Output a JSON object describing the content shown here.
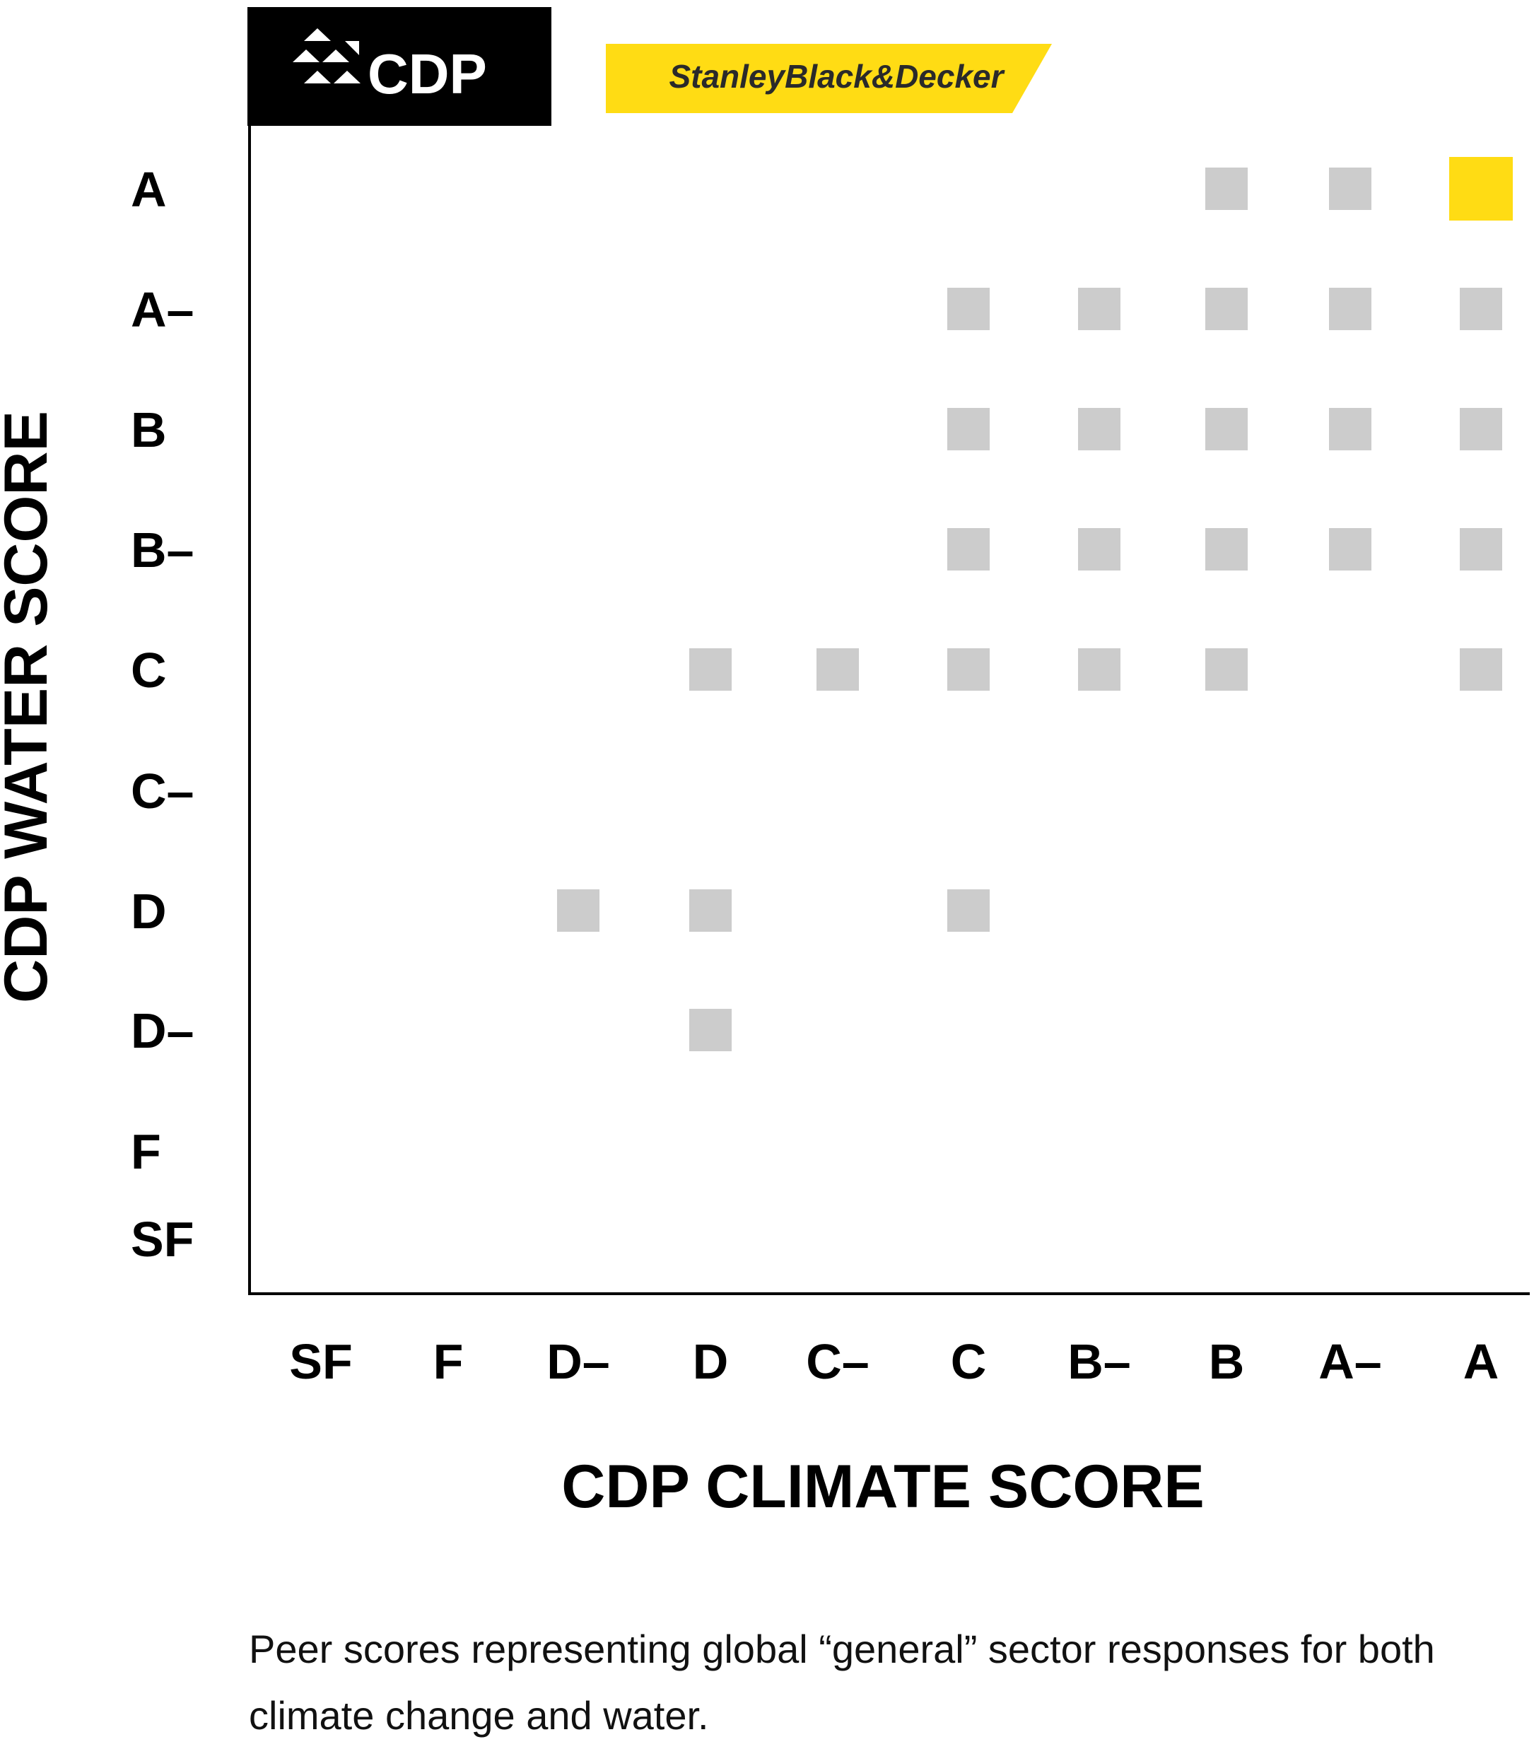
{
  "logos": {
    "cdp": "CDP",
    "brand": "StanleyBlack&Decker"
  },
  "colors": {
    "peer": "#cccccc",
    "highlight": "#ffdc14",
    "cdp_logo_bg": "#000000",
    "brand_bg": "#ffdc14"
  },
  "chart_data": {
    "type": "scatter",
    "xlabel": "CDP CLIMATE SCORE",
    "ylabel": "CDP WATER SCORE",
    "x_categories": [
      "SF",
      "F",
      "D–",
      "D",
      "C–",
      "C",
      "B–",
      "B",
      "A–",
      "A"
    ],
    "y_categories": [
      "A",
      "A–",
      "B",
      "B–",
      "C",
      "C–",
      "D",
      "D–",
      "F",
      "SF"
    ],
    "grid": false,
    "series": [
      {
        "points": [
          {
            "x": "B",
            "y": "A"
          },
          {
            "x": "A–",
            "y": "A"
          },
          {
            "x": "C",
            "y": "A–"
          },
          {
            "x": "B–",
            "y": "A–"
          },
          {
            "x": "B",
            "y": "A–"
          },
          {
            "x": "A–",
            "y": "A–"
          },
          {
            "x": "A",
            "y": "A–"
          },
          {
            "x": "C",
            "y": "B"
          },
          {
            "x": "B–",
            "y": "B"
          },
          {
            "x": "B",
            "y": "B"
          },
          {
            "x": "A–",
            "y": "B"
          },
          {
            "x": "A",
            "y": "B"
          },
          {
            "x": "C",
            "y": "B–"
          },
          {
            "x": "B–",
            "y": "B–"
          },
          {
            "x": "B",
            "y": "B–"
          },
          {
            "x": "A–",
            "y": "B–"
          },
          {
            "x": "A",
            "y": "B–"
          },
          {
            "x": "D",
            "y": "C"
          },
          {
            "x": "C–",
            "y": "C"
          },
          {
            "x": "C",
            "y": "C"
          },
          {
            "x": "B–",
            "y": "C"
          },
          {
            "x": "B",
            "y": "C"
          },
          {
            "x": "A",
            "y": "C"
          },
          {
            "x": "D–",
            "y": "D"
          },
          {
            "x": "D",
            "y": "D"
          },
          {
            "x": "C",
            "y": "D"
          },
          {
            "x": "D",
            "y": "D–"
          }
        ]
      },
      {
        "name": "StanleyBlack&Decker",
        "points": [
          {
            "x": "A",
            "y": "A"
          }
        ]
      }
    ]
  },
  "caption": "Peer scores representing global “general” sector responses for both climate change and water."
}
